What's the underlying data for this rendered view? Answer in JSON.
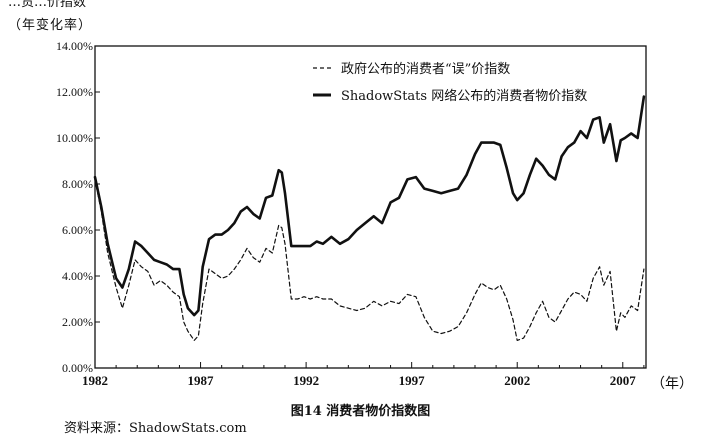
{
  "header": {
    "top_note": "…货…价指数"
  },
  "chart_data": {
    "type": "line",
    "title": "图14  消费者物价指数图",
    "ylabel": "（年变化率）",
    "xlabel": "（年）",
    "ylim": [
      0,
      14
    ],
    "xlim": [
      1982,
      2008.1
    ],
    "y_ticks": [
      "0.00%",
      "2.00%",
      "4.00%",
      "6.00%",
      "8.00%",
      "10.00%",
      "12.00%",
      "14.00%"
    ],
    "x_ticks": [
      "1982",
      "1987",
      "1992",
      "1997",
      "2002",
      "2007"
    ],
    "grid": false,
    "legend_position": "top-right",
    "series": [
      {
        "name": "政府公布的消费者“误”价指数",
        "style": "dashed",
        "color": "#111111",
        "x": [
          1982.0,
          1982.3,
          1982.6,
          1983.0,
          1983.3,
          1983.6,
          1983.9,
          1984.2,
          1984.5,
          1984.8,
          1985.1,
          1985.4,
          1985.7,
          1986.0,
          1986.2,
          1986.4,
          1986.7,
          1986.9,
          1987.1,
          1987.4,
          1987.7,
          1988.0,
          1988.3,
          1988.6,
          1988.9,
          1989.2,
          1989.5,
          1989.8,
          1990.1,
          1990.4,
          1990.7,
          1990.85,
          1991.0,
          1991.3,
          1991.6,
          1991.9,
          1992.2,
          1992.5,
          1992.8,
          1993.2,
          1993.6,
          1994.0,
          1994.4,
          1994.8,
          1995.2,
          1995.6,
          1996.0,
          1996.4,
          1996.8,
          1997.2,
          1997.6,
          1998.0,
          1998.4,
          1998.8,
          1999.2,
          1999.6,
          2000.0,
          2000.3,
          2000.6,
          2000.9,
          2001.2,
          2001.5,
          2001.8,
          2002.0,
          2002.3,
          2002.6,
          2002.9,
          2003.2,
          2003.5,
          2003.8,
          2004.1,
          2004.4,
          2004.7,
          2005.0,
          2005.3,
          2005.6,
          2005.9,
          2006.1,
          2006.4,
          2006.7,
          2006.9,
          2007.1,
          2007.4,
          2007.7,
          2008.0
        ],
        "values": [
          8.2,
          6.8,
          5.0,
          3.5,
          2.6,
          3.6,
          4.7,
          4.4,
          4.2,
          3.6,
          3.8,
          3.6,
          3.3,
          3.1,
          2.0,
          1.6,
          1.2,
          1.4,
          2.8,
          4.3,
          4.1,
          3.9,
          4.0,
          4.3,
          4.7,
          5.2,
          4.8,
          4.6,
          5.2,
          5.0,
          6.2,
          6.1,
          5.4,
          3.0,
          3.0,
          3.1,
          3.0,
          3.1,
          3.0,
          3.0,
          2.7,
          2.6,
          2.5,
          2.6,
          2.9,
          2.7,
          2.9,
          2.8,
          3.2,
          3.1,
          2.2,
          1.6,
          1.5,
          1.6,
          1.8,
          2.4,
          3.2,
          3.7,
          3.5,
          3.4,
          3.6,
          3.0,
          2.1,
          1.2,
          1.3,
          1.8,
          2.4,
          2.9,
          2.2,
          2.0,
          2.5,
          3.0,
          3.3,
          3.2,
          2.9,
          3.9,
          4.4,
          3.6,
          4.2,
          1.6,
          2.4,
          2.2,
          2.7,
          2.5,
          4.3
        ]
      },
      {
        "name": "ShadowStats 网络公布的消费者物价指数",
        "style": "solid",
        "color": "#111111",
        "x": [
          1982.0,
          1982.3,
          1982.6,
          1983.0,
          1983.3,
          1983.6,
          1983.9,
          1984.2,
          1984.5,
          1984.8,
          1985.1,
          1985.4,
          1985.7,
          1986.0,
          1986.2,
          1986.4,
          1986.7,
          1986.9,
          1987.1,
          1987.4,
          1987.7,
          1988.0,
          1988.3,
          1988.6,
          1988.9,
          1989.2,
          1989.5,
          1989.8,
          1990.1,
          1990.4,
          1990.7,
          1990.85,
          1991.0,
          1991.3,
          1991.6,
          1991.9,
          1992.2,
          1992.5,
          1992.8,
          1993.2,
          1993.6,
          1994.0,
          1994.4,
          1994.8,
          1995.2,
          1995.6,
          1996.0,
          1996.4,
          1996.8,
          1997.2,
          1997.6,
          1998.0,
          1998.4,
          1998.8,
          1999.2,
          1999.6,
          2000.0,
          2000.3,
          2000.6,
          2000.9,
          2001.2,
          2001.5,
          2001.8,
          2002.0,
          2002.3,
          2002.6,
          2002.9,
          2003.2,
          2003.5,
          2003.8,
          2004.1,
          2004.4,
          2004.7,
          2005.0,
          2005.3,
          2005.6,
          2005.9,
          2006.1,
          2006.4,
          2006.7,
          2006.9,
          2007.1,
          2007.4,
          2007.7,
          2008.0
        ],
        "values": [
          8.3,
          7.0,
          5.4,
          3.9,
          3.5,
          4.3,
          5.5,
          5.3,
          5.0,
          4.7,
          4.6,
          4.5,
          4.3,
          4.3,
          3.2,
          2.6,
          2.3,
          2.5,
          4.4,
          5.6,
          5.8,
          5.8,
          6.0,
          6.3,
          6.8,
          7.0,
          6.7,
          6.5,
          7.4,
          7.5,
          8.6,
          8.5,
          7.6,
          5.3,
          5.3,
          5.3,
          5.3,
          5.5,
          5.4,
          5.7,
          5.4,
          5.6,
          6.0,
          6.3,
          6.6,
          6.3,
          7.2,
          7.4,
          8.2,
          8.3,
          7.8,
          7.7,
          7.6,
          7.7,
          7.8,
          8.4,
          9.3,
          9.8,
          9.8,
          9.8,
          9.7,
          8.7,
          7.6,
          7.3,
          7.6,
          8.4,
          9.1,
          8.8,
          8.4,
          8.2,
          9.2,
          9.6,
          9.8,
          10.3,
          10.0,
          10.8,
          10.9,
          9.8,
          10.6,
          9.0,
          9.9,
          10.0,
          10.2,
          10.0,
          11.8
        ]
      }
    ]
  },
  "footer": {
    "source": "资料来源：ShadowStats.com"
  }
}
